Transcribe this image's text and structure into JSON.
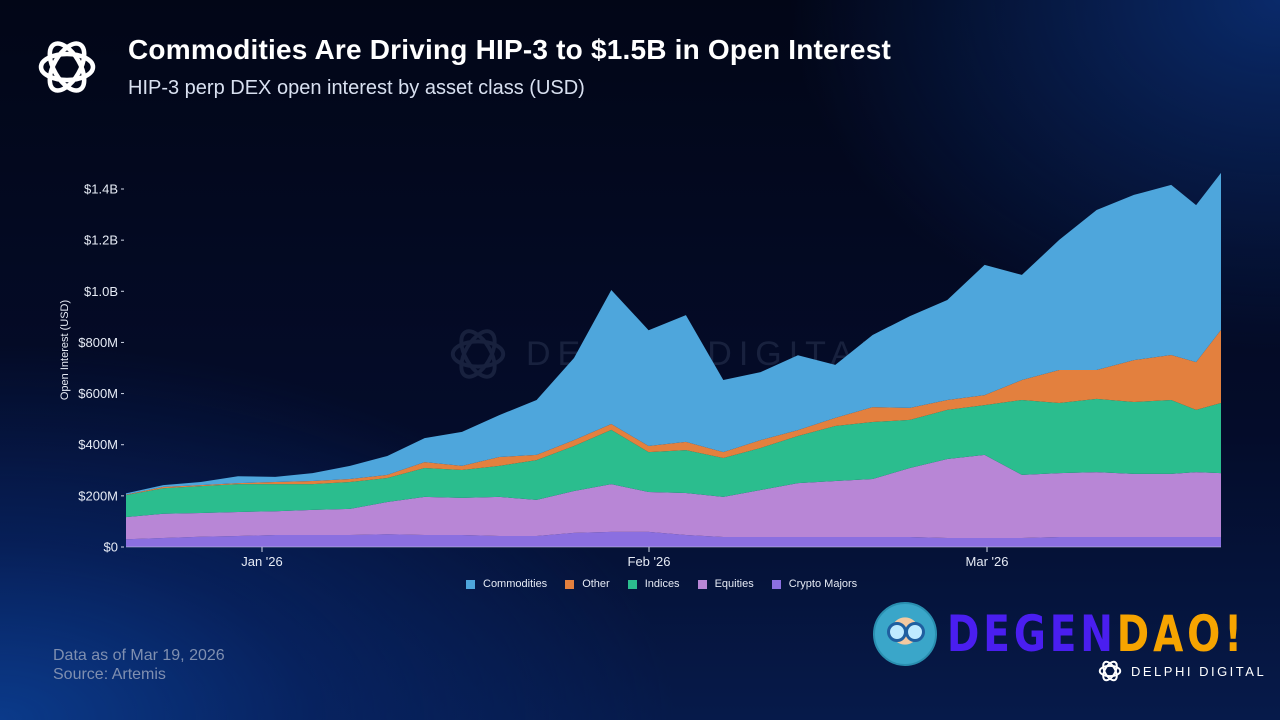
{
  "header": {
    "title": "Commodities Are Driving HIP-3 to $1.5B in Open Interest",
    "subtitle": "HIP-3 perp DEX open interest by asset class (USD)"
  },
  "footer": {
    "data_as_of": "Data as of Mar 19, 2026",
    "source": "Source: Artemis"
  },
  "watermark": "DELPHI DIGITAL",
  "branding": {
    "sticker_part1": "DEGEN",
    "sticker_part2": "DAO!",
    "brand_name": "DELPHI DIGITAL",
    "colors": {
      "degen": "#4a1ef0",
      "dao": "#f6a400"
    }
  },
  "chart_data": {
    "type": "area",
    "stacked": true,
    "title": "Commodities Are Driving HIP-3 to $1.5B in Open Interest",
    "subtitle": "HIP-3 perp DEX open interest by asset class (USD)",
    "xlabel": "",
    "ylabel": "Open Interest (USD)",
    "ylim": [
      0,
      1470
    ],
    "y_unit": "USD millions",
    "yticks": [
      0,
      200,
      400,
      600,
      800,
      1000,
      1200,
      1400
    ],
    "ytick_labels": [
      "$0",
      "$200M",
      "$400M",
      "$600M",
      "$800M",
      "$1.0B",
      "$1.2B",
      "$1.4B"
    ],
    "xticks": [
      "2026-01-01",
      "2026-02-01",
      "2026-03-01"
    ],
    "xtick_labels": [
      "Jan '26",
      "Feb '26",
      "Mar '26"
    ],
    "xlim": [
      "2025-12-21",
      "2026-03-19"
    ],
    "grid": false,
    "legend_position": "bottom",
    "x": [
      "2025-12-21",
      "2025-12-24",
      "2025-12-27",
      "2025-12-30",
      "2026-01-02",
      "2026-01-05",
      "2026-01-08",
      "2026-01-11",
      "2026-01-14",
      "2026-01-17",
      "2026-01-20",
      "2026-01-23",
      "2026-01-26",
      "2026-01-29",
      "2026-02-01",
      "2026-02-04",
      "2026-02-07",
      "2026-02-10",
      "2026-02-13",
      "2026-02-16",
      "2026-02-19",
      "2026-02-22",
      "2026-02-25",
      "2026-02-28",
      "2026-03-03",
      "2026-03-06",
      "2026-03-09",
      "2026-03-12",
      "2026-03-15",
      "2026-03-17",
      "2026-03-19"
    ],
    "series": [
      {
        "name": "Crypto Majors",
        "color": "#8b6fe0",
        "values": [
          30,
          35,
          40,
          43,
          47,
          47,
          47,
          50,
          47,
          47,
          43,
          43,
          55,
          59,
          59,
          47,
          39,
          39,
          39,
          39,
          39,
          39,
          35,
          35,
          35,
          39,
          39,
          39,
          39,
          39,
          39
        ]
      },
      {
        "name": "Equities",
        "color": "#b886d6",
        "values": [
          87,
          95,
          93,
          94,
          93,
          98,
          102,
          126,
          149,
          145,
          153,
          141,
          164,
          187,
          156,
          164,
          157,
          184,
          211,
          219,
          227,
          270,
          309,
          325,
          247,
          250,
          254,
          247,
          247,
          254,
          250
        ]
      },
      {
        "name": "Indices",
        "color": "#2bbd8e",
        "values": [
          86,
          100,
          105,
          109,
          106,
          101,
          105,
          94,
          113,
          109,
          121,
          156,
          176,
          212,
          156,
          168,
          152,
          164,
          184,
          215,
          223,
          188,
          192,
          195,
          293,
          274,
          286,
          281,
          289,
          243,
          274
        ]
      },
      {
        "name": "Other",
        "color": "#e3803e",
        "values": [
          2,
          5,
          4,
          4,
          8,
          12,
          12,
          12,
          23,
          16,
          35,
          20,
          23,
          23,
          24,
          32,
          23,
          31,
          23,
          32,
          58,
          47,
          39,
          39,
          78,
          129,
          113,
          164,
          176,
          187,
          286
        ]
      },
      {
        "name": "Commodities",
        "color": "#4ea6dc",
        "values": [
          5,
          7,
          12,
          27,
          20,
          31,
          51,
          74,
          94,
          133,
          164,
          215,
          321,
          524,
          453,
          496,
          282,
          266,
          293,
          207,
          282,
          359,
          391,
          509,
          411,
          509,
          626,
          646,
          665,
          614,
          614
        ]
      }
    ],
    "legend_order": [
      "Commodities",
      "Other",
      "Indices",
      "Equities",
      "Crypto Majors"
    ]
  }
}
